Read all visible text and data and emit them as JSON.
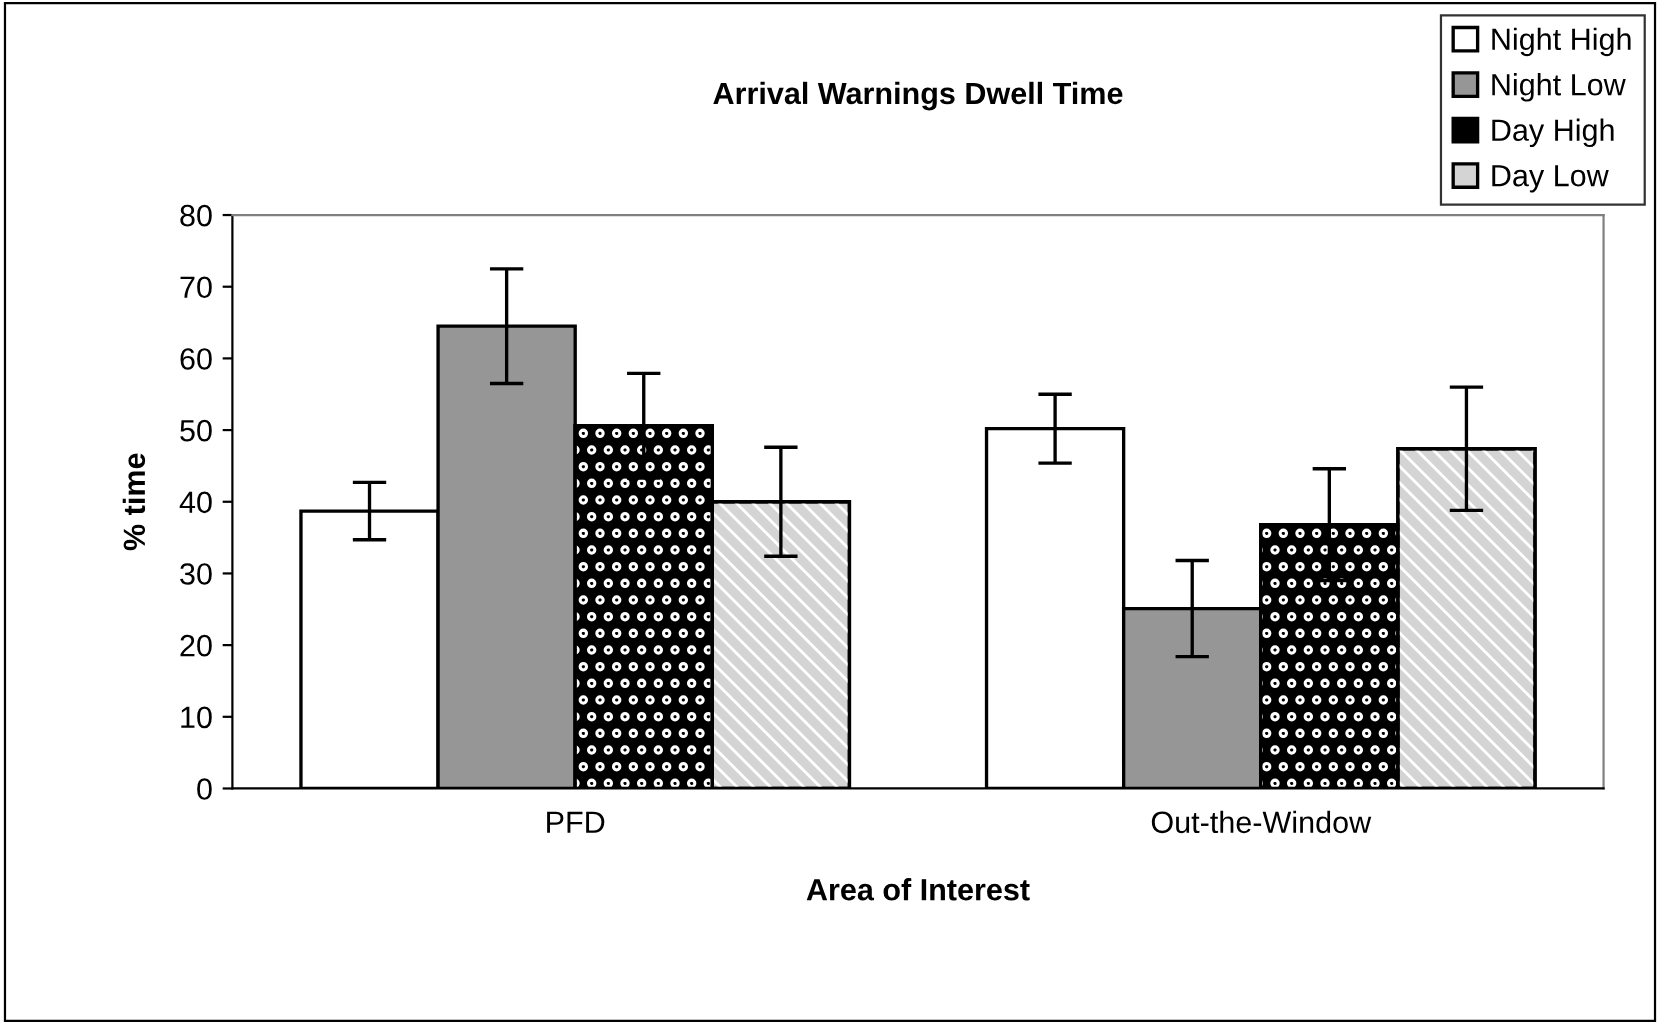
{
  "chart_data": {
    "type": "bar",
    "title": "Arrival Warnings Dwell Time",
    "xlabel": "Area of Interest",
    "ylabel": "% time",
    "categories": [
      "PFD",
      "Out-the-Window"
    ],
    "series": [
      {
        "name": "Night High",
        "color": "#ffffff",
        "values": [
          38.7,
          50.2
        ],
        "errors": [
          4,
          4.8
        ]
      },
      {
        "name": "Night Low",
        "color": "#969696",
        "values": [
          64.5,
          25.1
        ],
        "errors": [
          8,
          6.7
        ]
      },
      {
        "name": "Day High",
        "color": "#000000",
        "values": [
          50.6,
          36.8
        ],
        "errors": [
          7.3,
          7.8
        ]
      },
      {
        "name": "Day Low",
        "color": "#d4d4d4",
        "values": [
          40,
          47.4
        ],
        "errors": [
          7.6,
          8.6
        ]
      }
    ],
    "ylim": [
      0,
      80
    ],
    "yticks": [
      0,
      10,
      20,
      30,
      40,
      50,
      60,
      70,
      80
    ],
    "grid": false,
    "legend": "top right"
  }
}
